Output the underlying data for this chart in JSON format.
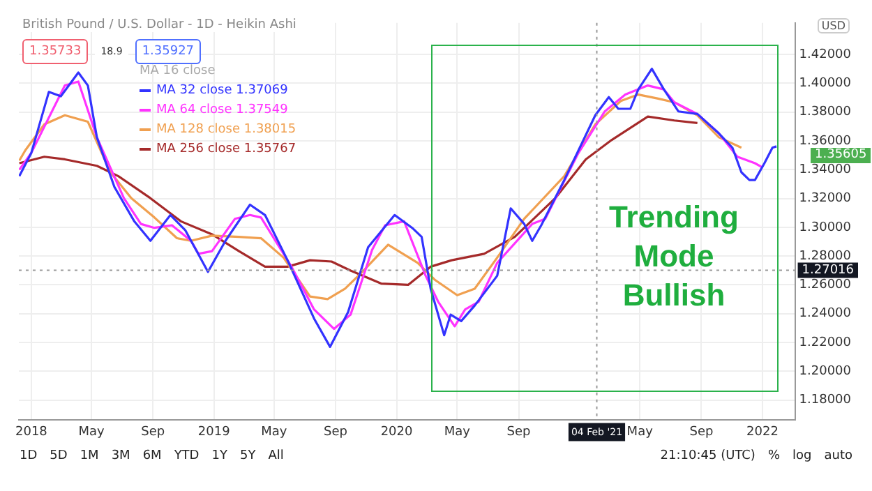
{
  "chart_data": {
    "type": "line",
    "title": "British Pound / U.S. Dollar - 1D - Heikin Ashi",
    "xlim": [
      "2017-12-07",
      "2022-03-07"
    ],
    "ylim": [
      1.166,
      1.442
    ],
    "xticks": [
      {
        "value": "2018-01-01",
        "label": "2018"
      },
      {
        "value": "2018-05-01",
        "label": "May"
      },
      {
        "value": "2018-09-01",
        "label": "Sep"
      },
      {
        "value": "2019-01-01",
        "label": "2019"
      },
      {
        "value": "2019-05-01",
        "label": "May"
      },
      {
        "value": "2019-09-01",
        "label": "Sep"
      },
      {
        "value": "2020-01-01",
        "label": "2020"
      },
      {
        "value": "2020-05-01",
        "label": "May"
      },
      {
        "value": "2020-09-01",
        "label": "Sep"
      },
      {
        "value": "2021-05-01",
        "label": "May"
      },
      {
        "value": "2021-09-01",
        "label": "Sep"
      },
      {
        "value": "2022-01-01",
        "label": "2022"
      }
    ],
    "yticks": [
      {
        "value": 1.18,
        "label": "1.18000"
      },
      {
        "value": 1.2,
        "label": "1.20000"
      },
      {
        "value": 1.22,
        "label": "1.22000"
      },
      {
        "value": 1.24,
        "label": "1.24000"
      },
      {
        "value": 1.26,
        "label": "1.26000"
      },
      {
        "value": 1.28,
        "label": "1.28000"
      },
      {
        "value": 1.3,
        "label": "1.30000"
      },
      {
        "value": 1.32,
        "label": "1.32000"
      },
      {
        "value": 1.34,
        "label": "1.34000"
      },
      {
        "value": 1.36,
        "label": "1.36000"
      },
      {
        "value": 1.38,
        "label": "1.38000"
      },
      {
        "value": 1.4,
        "label": "1.40000"
      },
      {
        "value": 1.42,
        "label": "1.42000"
      }
    ],
    "grid": true,
    "legend": "top left",
    "marker": "none",
    "line_style": "solid",
    "series": [
      {
        "name": "MA 32 close 1.37069",
        "color": "#3333ff",
        "x": [
          "2017-12-08",
          "2018-01-01",
          "2018-02-05",
          "2018-03-01",
          "2018-04-05",
          "2018-04-24",
          "2018-05-12",
          "2018-06-16",
          "2018-07-26",
          "2018-08-27",
          "2018-10-06",
          "2018-11-05",
          "2018-12-20",
          "2019-01-24",
          "2019-03-14",
          "2019-04-13",
          "2019-05-28",
          "2019-07-20",
          "2019-08-21",
          "2019-09-26",
          "2019-11-05",
          "2019-12-28",
          "2020-02-01",
          "2020-02-20",
          "2020-03-09",
          "2020-04-05",
          "2020-04-18",
          "2020-05-09",
          "2020-06-05",
          "2020-07-20",
          "2020-08-16",
          "2020-09-12",
          "2020-09-28",
          "2020-10-16",
          "2020-12-01",
          "2021-02-01",
          "2021-02-28",
          "2021-03-19",
          "2021-04-12",
          "2021-04-28",
          "2021-05-25",
          "2021-06-18",
          "2021-07-17",
          "2021-08-24",
          "2021-10-06",
          "2021-11-02",
          "2021-11-20",
          "2021-12-06",
          "2021-12-17",
          "2022-01-05",
          "2022-01-21",
          "2022-01-29"
        ],
        "values": [
          1.3355,
          1.3517,
          1.394,
          1.391,
          1.4075,
          1.3985,
          1.3625,
          1.328,
          1.304,
          1.2906,
          1.3085,
          1.2978,
          1.269,
          1.2906,
          1.3157,
          1.3085,
          1.2771,
          1.2366,
          1.2169,
          1.2411,
          1.2861,
          1.3085,
          1.2996,
          1.2933,
          1.2573,
          1.225,
          1.2393,
          1.2348,
          1.2456,
          1.2663,
          1.3131,
          1.3023,
          1.2906,
          1.3014,
          1.3328,
          1.3778,
          1.3904,
          1.3823,
          1.3823,
          1.3958,
          1.4101,
          1.3958,
          1.3805,
          1.3787,
          1.3652,
          1.3553,
          1.3382,
          1.3328,
          1.3328,
          1.3445,
          1.3553,
          1.3562
        ]
      },
      {
        "name": "MA 64 close 1.37549",
        "color": "#ff33ff",
        "x": [
          "2017-12-08",
          "2018-01-01",
          "2018-03-09",
          "2018-04-05",
          "2018-05-12",
          "2018-07-05",
          "2018-08-08",
          "2018-09-04",
          "2018-10-09",
          "2018-11-16",
          "2018-12-01",
          "2018-12-28",
          "2019-02-12",
          "2019-03-14",
          "2019-04-05",
          "2019-06-05",
          "2019-07-20",
          "2019-08-29",
          "2019-10-01",
          "2019-11-13",
          "2019-12-09",
          "2020-01-16",
          "2020-02-28",
          "2020-03-24",
          "2020-04-26",
          "2020-05-17",
          "2020-06-13",
          "2020-07-20",
          "2020-09-28",
          "2020-10-24",
          "2020-12-28",
          "2021-02-20",
          "2021-04-02",
          "2021-05-17",
          "2021-06-18",
          "2021-07-09",
          "2021-08-24",
          "2021-10-06",
          "2021-11-12",
          "2021-12-17",
          "2021-12-31"
        ],
        "values": [
          1.34,
          1.3517,
          1.3985,
          1.4012,
          1.3625,
          1.3202,
          1.3023,
          1.2996,
          1.3014,
          1.2906,
          1.2816,
          1.2834,
          1.3059,
          1.3085,
          1.3068,
          1.2726,
          1.2429,
          1.2294,
          1.2393,
          1.2843,
          1.3014,
          1.3041,
          1.2663,
          1.2483,
          1.2312,
          1.2429,
          1.2483,
          1.2753,
          1.3023,
          1.3059,
          1.3508,
          1.3805,
          1.3922,
          1.3985,
          1.3958,
          1.3868,
          1.3787,
          1.3652,
          1.349,
          1.3445,
          1.3418
        ]
      },
      {
        "name": "MA 128 close 1.38015",
        "color": "#f0a050",
        "x": [
          "2017-12-08",
          "2017-12-20",
          "2018-01-27",
          "2018-03-09",
          "2018-04-24",
          "2018-06-08",
          "2018-07-20",
          "2018-09-04",
          "2018-10-19",
          "2018-11-16",
          "2018-12-28",
          "2019-02-20",
          "2019-04-05",
          "2019-05-20",
          "2019-07-12",
          "2019-08-16",
          "2019-09-20",
          "2019-10-27",
          "2019-12-15",
          "2020-01-05",
          "2020-02-12",
          "2020-03-17",
          "2020-05-01",
          "2020-06-05",
          "2020-07-20",
          "2020-09-12",
          "2020-12-01",
          "2021-02-01",
          "2021-03-24",
          "2021-04-28",
          "2021-06-05",
          "2021-07-09",
          "2021-08-24",
          "2021-10-06",
          "2021-11-20"
        ],
        "values": [
          1.3463,
          1.3535,
          1.3715,
          1.3778,
          1.3733,
          1.3382,
          1.3202,
          1.3068,
          1.2924,
          1.2906,
          1.2942,
          1.2933,
          1.2924,
          1.2789,
          1.2519,
          1.2501,
          1.2573,
          1.2699,
          1.2879,
          1.2834,
          1.2753,
          1.2636,
          1.2528,
          1.2573,
          1.2789,
          1.3059,
          1.3355,
          1.3715,
          1.3877,
          1.3922,
          1.3895,
          1.3868,
          1.3778,
          1.3625,
          1.3553
        ]
      },
      {
        "name": "MA 256 close 1.35767",
        "color": "#a52a2a",
        "x": [
          "2017-12-08",
          "2018-01-27",
          "2018-03-09",
          "2018-05-12",
          "2018-06-24",
          "2018-08-27",
          "2018-10-27",
          "2018-12-28",
          "2019-02-20",
          "2019-04-13",
          "2019-05-28",
          "2019-07-12",
          "2019-08-24",
          "2019-10-01",
          "2019-12-01",
          "2020-01-24",
          "2020-03-09",
          "2020-04-20",
          "2020-06-24",
          "2020-08-24",
          "2020-11-13",
          "2021-01-13",
          "2021-03-06",
          "2021-05-17",
          "2021-07-09",
          "2021-08-24"
        ],
        "values": [
          1.3445,
          1.349,
          1.3472,
          1.3427,
          1.3355,
          1.3202,
          1.3041,
          1.2951,
          1.2834,
          1.2726,
          1.2726,
          1.2771,
          1.2762,
          1.2699,
          1.2609,
          1.26,
          1.2726,
          1.2771,
          1.2816,
          1.2933,
          1.3202,
          1.3472,
          1.3607,
          1.3769,
          1.3742,
          1.3724
        ]
      }
    ],
    "ref_lines": [
      {
        "axis": "y",
        "value": 1.27016,
        "label": "1.27016",
        "color": "#999999",
        "line_style": "dotted"
      },
      {
        "axis": "x",
        "value": "2021-02-04",
        "label": "04 Feb '21",
        "color": "#999999",
        "line_style": "dotted"
      }
    ],
    "annotations": [
      "1.35733",
      "18.9",
      "1.35927",
      "MA 16 close",
      "USD",
      "1D",
      "5D",
      "1M",
      "3M",
      "6M",
      "YTD",
      "1Y",
      "5Y",
      "All",
      "21:10:45 (UTC)",
      "%",
      "log",
      "auto",
      "Trending Mode Bullish",
      "1.35605"
    ]
  }
}
